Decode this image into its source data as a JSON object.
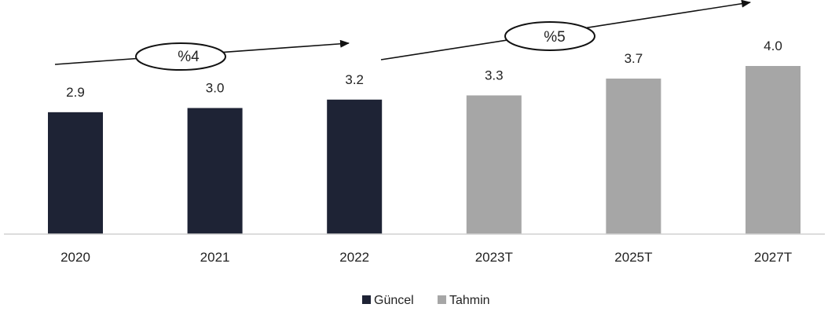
{
  "chart_data": {
    "type": "bar",
    "title": "",
    "xlabel": "",
    "ylabel": "",
    "categories": [
      "2020",
      "2021",
      "2022",
      "2023T",
      "2025T",
      "2027T"
    ],
    "values": [
      2.9,
      3.0,
      3.2,
      3.3,
      3.7,
      4.0
    ],
    "value_labels": [
      "2.9",
      "3.0",
      "3.2",
      "3.3",
      "3.7",
      "4.0"
    ],
    "series_type": [
      "Güncel",
      "Güncel",
      "Güncel",
      "Tahmin",
      "Tahmin",
      "Tahmin"
    ],
    "ylim": [
      0,
      4.2
    ],
    "grid": false,
    "legend": {
      "placement": "bottom",
      "items": [
        {
          "name": "Güncel",
          "color": "#1e2335"
        },
        {
          "name": "Tahmin",
          "color": "#a6a6a6"
        }
      ]
    },
    "annotations": [
      {
        "label": "%4",
        "from": "2020",
        "to": "2022"
      },
      {
        "label": "%5",
        "from": "2023T",
        "to": "2027T"
      }
    ]
  },
  "colors": {
    "actual": "#1e2335",
    "forecast": "#a6a6a6",
    "axis": "#d0d0d0",
    "arrow": "#111111"
  }
}
